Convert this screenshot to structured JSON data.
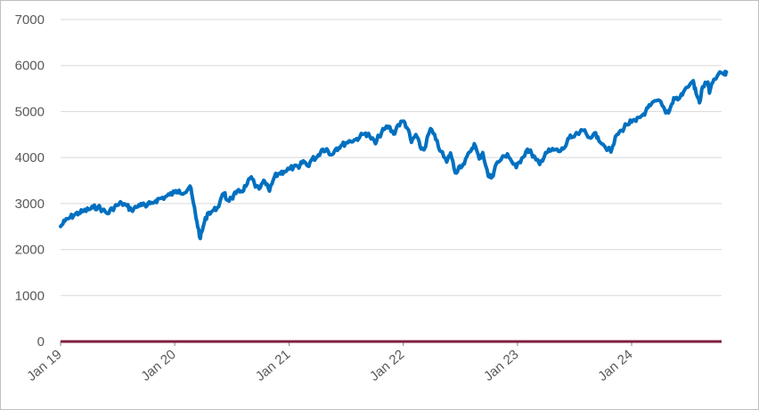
{
  "chart_data": {
    "type": "line",
    "title": "",
    "xlabel": "",
    "ylabel": "",
    "ylim": [
      0,
      7000
    ],
    "yticks": [
      "0",
      "1000",
      "2000",
      "3000",
      "4000",
      "5000",
      "6000",
      "7000"
    ],
    "xticks": [
      {
        "label": "Jan 19",
        "date": "2019-01-01"
      },
      {
        "label": "Jan 20",
        "date": "2020-01-01"
      },
      {
        "label": "Jan 21",
        "date": "2021-01-01"
      },
      {
        "label": "Jan 22",
        "date": "2022-01-01"
      },
      {
        "label": "Jan 23",
        "date": "2023-01-01"
      },
      {
        "label": "Jan 24",
        "date": "2024-01-01"
      }
    ],
    "grid": true,
    "legend": "none",
    "colors": {
      "series": "#0070c0",
      "baseline": "#7f1d3f",
      "grid": "#d9d9d9"
    },
    "series": [
      {
        "color": "#0070c0",
        "points": [
          [
            "2019-01-01",
            2500
          ],
          [
            "2019-01-15",
            2620
          ],
          [
            "2019-02-01",
            2700
          ],
          [
            "2019-02-15",
            2760
          ],
          [
            "2019-03-01",
            2800
          ],
          [
            "2019-03-15",
            2830
          ],
          [
            "2019-04-01",
            2870
          ],
          [
            "2019-04-15",
            2910
          ],
          [
            "2019-05-01",
            2930
          ],
          [
            "2019-05-15",
            2860
          ],
          [
            "2019-06-01",
            2780
          ],
          [
            "2019-06-15",
            2890
          ],
          [
            "2019-07-01",
            2960
          ],
          [
            "2019-07-15",
            3010
          ],
          [
            "2019-08-01",
            2950
          ],
          [
            "2019-08-15",
            2860
          ],
          [
            "2019-09-01",
            2920
          ],
          [
            "2019-09-15",
            3000
          ],
          [
            "2019-10-01",
            2930
          ],
          [
            "2019-10-15",
            3000
          ],
          [
            "2019-11-01",
            3060
          ],
          [
            "2019-11-15",
            3110
          ],
          [
            "2019-12-01",
            3140
          ],
          [
            "2019-12-15",
            3190
          ],
          [
            "2020-01-01",
            3240
          ],
          [
            "2020-01-15",
            3290
          ],
          [
            "2020-02-01",
            3230
          ],
          [
            "2020-02-19",
            3380
          ],
          [
            "2020-03-01",
            3000
          ],
          [
            "2020-03-12",
            2600
          ],
          [
            "2020-03-23",
            2240
          ],
          [
            "2020-04-01",
            2500
          ],
          [
            "2020-04-15",
            2790
          ],
          [
            "2020-05-01",
            2840
          ],
          [
            "2020-05-15",
            2900
          ],
          [
            "2020-06-08",
            3230
          ],
          [
            "2020-06-15",
            3080
          ],
          [
            "2020-07-01",
            3110
          ],
          [
            "2020-07-15",
            3220
          ],
          [
            "2020-08-01",
            3270
          ],
          [
            "2020-08-15",
            3370
          ],
          [
            "2020-09-02",
            3580
          ],
          [
            "2020-09-15",
            3360
          ],
          [
            "2020-10-01",
            3350
          ],
          [
            "2020-10-15",
            3480
          ],
          [
            "2020-10-30",
            3270
          ],
          [
            "2020-11-15",
            3580
          ],
          [
            "2020-12-01",
            3660
          ],
          [
            "2020-12-15",
            3700
          ],
          [
            "2021-01-01",
            3750
          ],
          [
            "2021-01-15",
            3790
          ],
          [
            "2021-02-01",
            3770
          ],
          [
            "2021-02-15",
            3930
          ],
          [
            "2021-03-01",
            3820
          ],
          [
            "2021-03-15",
            3960
          ],
          [
            "2021-04-01",
            4020
          ],
          [
            "2021-04-15",
            4170
          ],
          [
            "2021-05-01",
            4190
          ],
          [
            "2021-05-12",
            4060
          ],
          [
            "2021-06-01",
            4200
          ],
          [
            "2021-06-15",
            4250
          ],
          [
            "2021-07-01",
            4320
          ],
          [
            "2021-07-15",
            4360
          ],
          [
            "2021-08-01",
            4390
          ],
          [
            "2021-08-15",
            4450
          ],
          [
            "2021-09-02",
            4530
          ],
          [
            "2021-09-15",
            4470
          ],
          [
            "2021-10-04",
            4300
          ],
          [
            "2021-10-15",
            4470
          ],
          [
            "2021-11-01",
            4610
          ],
          [
            "2021-11-15",
            4680
          ],
          [
            "2021-12-01",
            4510
          ],
          [
            "2021-12-15",
            4710
          ],
          [
            "2022-01-03",
            4790
          ],
          [
            "2022-01-15",
            4620
          ],
          [
            "2022-01-27",
            4330
          ],
          [
            "2022-02-10",
            4500
          ],
          [
            "2022-02-24",
            4230
          ],
          [
            "2022-03-08",
            4170
          ],
          [
            "2022-03-29",
            4630
          ],
          [
            "2022-04-15",
            4390
          ],
          [
            "2022-05-01",
            4130
          ],
          [
            "2022-05-20",
            3900
          ],
          [
            "2022-06-01",
            4100
          ],
          [
            "2022-06-16",
            3670
          ],
          [
            "2022-07-01",
            3820
          ],
          [
            "2022-07-15",
            3860
          ],
          [
            "2022-08-01",
            4120
          ],
          [
            "2022-08-16",
            4300
          ],
          [
            "2022-09-01",
            3970
          ],
          [
            "2022-09-12",
            4110
          ],
          [
            "2022-09-30",
            3590
          ],
          [
            "2022-10-12",
            3580
          ],
          [
            "2022-10-25",
            3860
          ],
          [
            "2022-11-10",
            3960
          ],
          [
            "2022-11-30",
            4080
          ],
          [
            "2022-12-15",
            3900
          ],
          [
            "2022-12-28",
            3780
          ],
          [
            "2023-01-15",
            3990
          ],
          [
            "2023-02-02",
            4180
          ],
          [
            "2023-02-15",
            4090
          ],
          [
            "2023-03-01",
            3950
          ],
          [
            "2023-03-13",
            3850
          ],
          [
            "2023-04-01",
            4110
          ],
          [
            "2023-04-15",
            4140
          ],
          [
            "2023-05-01",
            4170
          ],
          [
            "2023-05-15",
            4130
          ],
          [
            "2023-06-01",
            4220
          ],
          [
            "2023-06-15",
            4420
          ],
          [
            "2023-07-01",
            4450
          ],
          [
            "2023-07-31",
            4590
          ],
          [
            "2023-08-15",
            4440
          ],
          [
            "2023-09-01",
            4510
          ],
          [
            "2023-09-15",
            4450
          ],
          [
            "2023-10-01",
            4290
          ],
          [
            "2023-10-27",
            4120
          ],
          [
            "2023-11-15",
            4500
          ],
          [
            "2023-12-01",
            4590
          ],
          [
            "2023-12-15",
            4720
          ],
          [
            "2024-01-01",
            4770
          ],
          [
            "2024-01-15",
            4790
          ],
          [
            "2024-02-01",
            4900
          ],
          [
            "2024-02-15",
            5000
          ],
          [
            "2024-03-01",
            5130
          ],
          [
            "2024-03-28",
            5250
          ],
          [
            "2024-04-19",
            4970
          ],
          [
            "2024-05-01",
            5020
          ],
          [
            "2024-05-15",
            5300
          ],
          [
            "2024-06-01",
            5280
          ],
          [
            "2024-06-15",
            5430
          ],
          [
            "2024-07-16",
            5670
          ],
          [
            "2024-07-25",
            5400
          ],
          [
            "2024-08-05",
            5190
          ],
          [
            "2024-08-15",
            5540
          ],
          [
            "2024-09-01",
            5640
          ],
          [
            "2024-09-06",
            5400
          ],
          [
            "2024-09-20",
            5700
          ],
          [
            "2024-10-15",
            5840
          ],
          [
            "2024-10-25",
            5800
          ],
          [
            "2024-10-30",
            5860
          ]
        ]
      }
    ],
    "baseline": {
      "value": 0,
      "color": "#7f1d3f"
    }
  }
}
